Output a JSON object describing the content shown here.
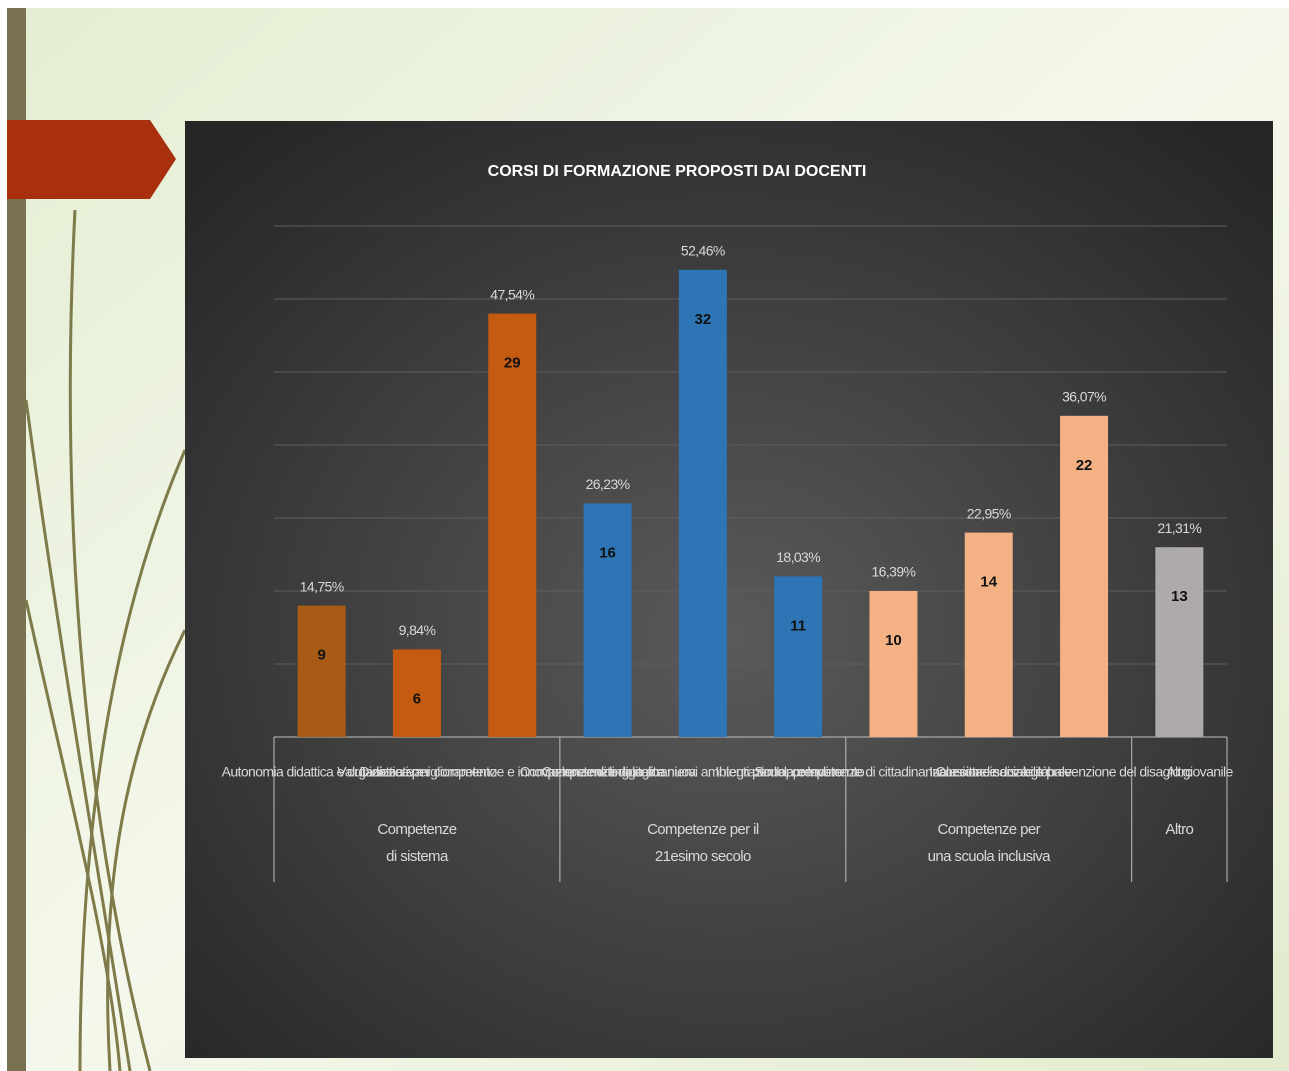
{
  "chart_data": {
    "type": "bar",
    "title": "CORSI DI FORMAZIONE PROPOSTI DAI DOCENTI",
    "ylim": [
      0,
      35
    ],
    "yticks": [
      0,
      5,
      10,
      15,
      20,
      25,
      30,
      35
    ],
    "grid": true,
    "groups": [
      {
        "label": [
          "Competenze",
          "di sistema"
        ],
        "categories": [
          "Autonomia didattica e organizzativa",
          "Valutazione e miglioramento",
          "Didattica per competenze e innovazione metodologica"
        ],
        "values": [
          9,
          6,
          29
        ],
        "percent_labels": [
          "14,75%",
          "9,84%",
          "47,54%"
        ],
        "colors": [
          "#a85b14",
          "#c55a11",
          "#c55a11"
        ]
      },
      {
        "label": [
          "Competenze per il",
          "21esimo secolo"
        ],
        "categories": [
          "Competenze di lingua straniera",
          "Competenze digitali e nuovi ambienti per l'apprendimento",
          "Scuola e lavoro"
        ],
        "values": [
          16,
          32,
          11
        ],
        "percent_labels": [
          "26,23%",
          "52,46%",
          "18,03%"
        ],
        "colors": [
          "#2e75b6",
          "#2e75b6",
          "#2e75b6"
        ]
      },
      {
        "label": [
          "Competenze per",
          "una scuola inclusiva"
        ],
        "categories": [
          "Integrazione, competenze di cittadinanza e cittadinanza globale",
          "Inclusione e disabilità",
          "Coesione sociale e prevenzione del disagio giovanile"
        ],
        "values": [
          10,
          14,
          22
        ],
        "percent_labels": [
          "16,39%",
          "22,95%",
          "36,07%"
        ],
        "colors": [
          "#f4b183",
          "#f4b183",
          "#f4b183"
        ]
      },
      {
        "label": [
          "Altro"
        ],
        "categories": [
          "Altro"
        ],
        "values": [
          13
        ],
        "percent_labels": [
          "21,31%"
        ],
        "colors": [
          "#aeaaaa"
        ]
      }
    ]
  }
}
